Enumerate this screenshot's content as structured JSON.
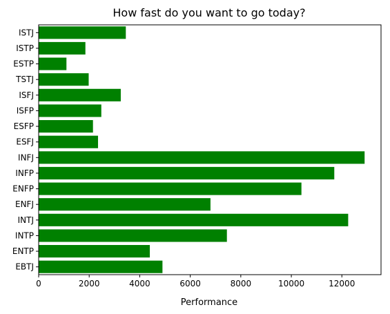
{
  "chart_data": {
    "type": "bar",
    "orientation": "horizontal",
    "title": "How fast do you want to go today?",
    "xlabel": "Performance",
    "ylabel": "",
    "categories": [
      "EBTJ",
      "ENTP",
      "INTP",
      "INTJ",
      "ENFJ",
      "ENFP",
      "INFP",
      "INFJ",
      "ESFJ",
      "ESFP",
      "ISFP",
      "ISFJ",
      "TSTJ",
      "ESTP",
      "ISTP",
      "ISTJ"
    ],
    "values": [
      4900,
      4400,
      7450,
      12250,
      6800,
      10400,
      11700,
      12900,
      2350,
      2150,
      2480,
      3250,
      1980,
      1100,
      1850,
      3450
    ],
    "xlim": [
      0,
      13550
    ],
    "xticks": [
      0,
      2000,
      4000,
      6000,
      8000,
      10000,
      12000
    ],
    "colors": {
      "bar": "#008000",
      "axis": "#000000"
    },
    "grid": false,
    "legend": "none"
  }
}
